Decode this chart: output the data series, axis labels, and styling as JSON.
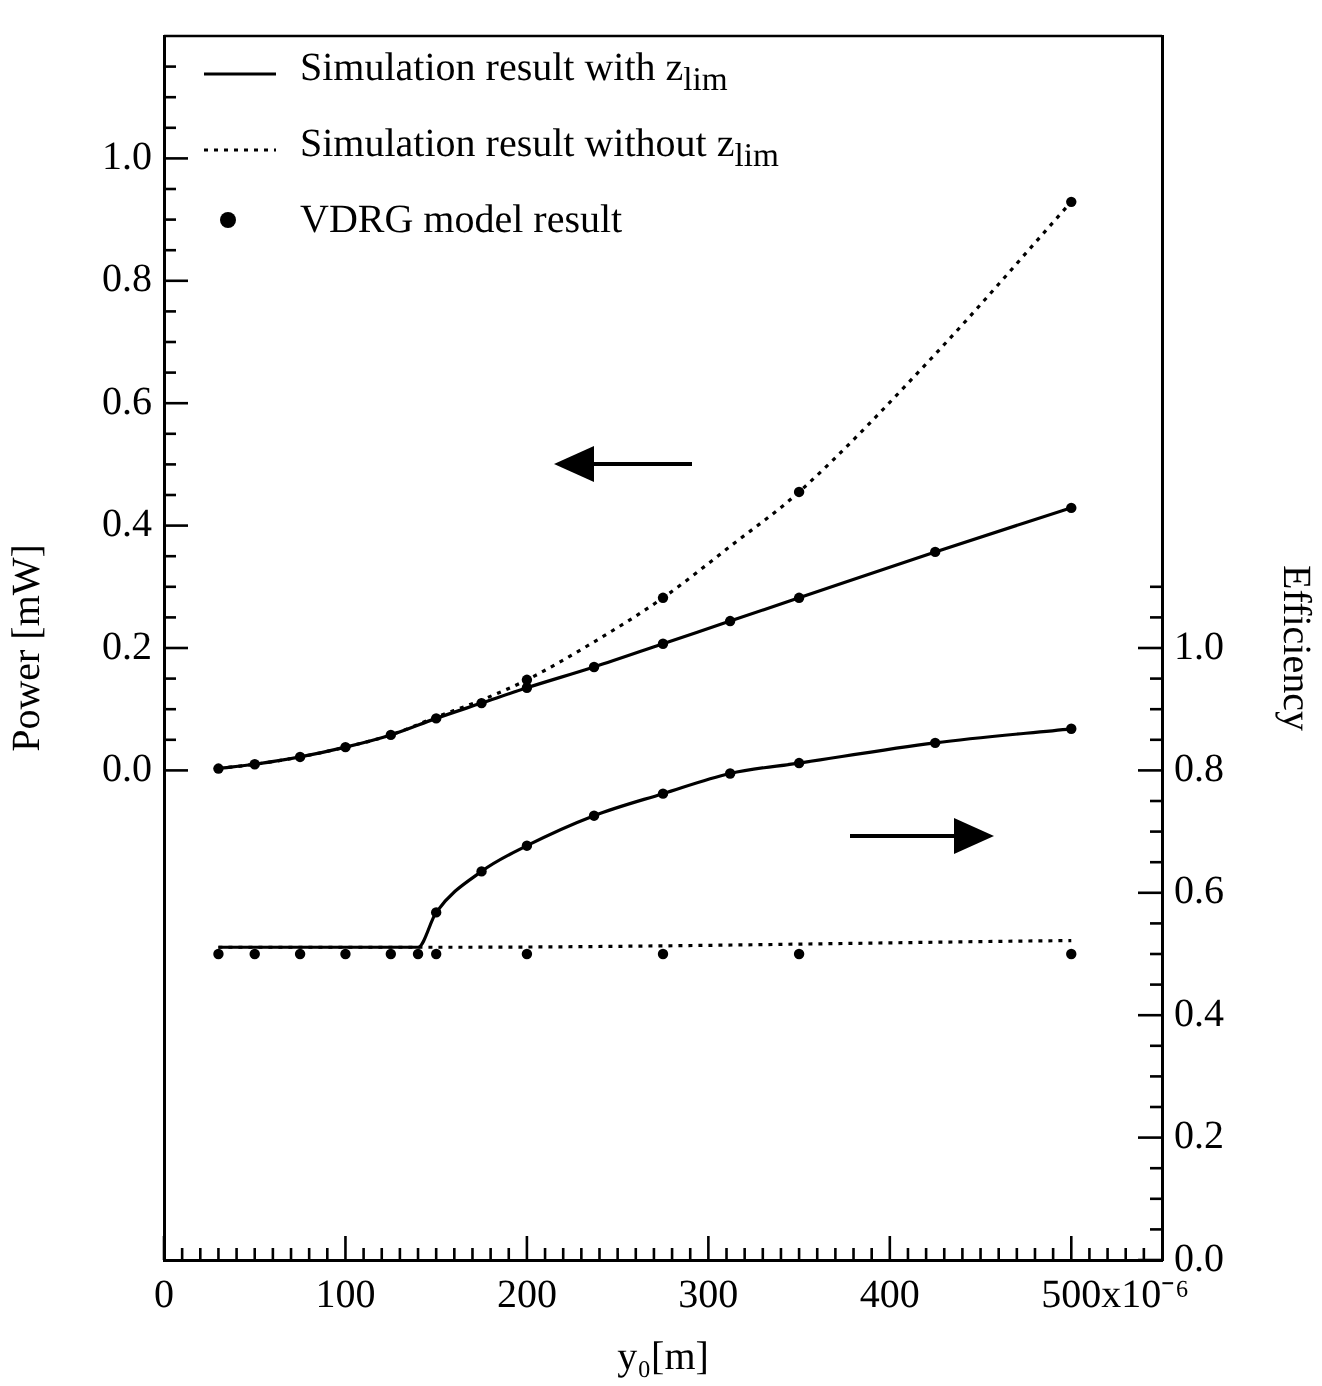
{
  "chart_data": {
    "type": "line",
    "xlabel": "y₀[m]",
    "ylabel": "Power [mW]",
    "y2label": "Efficiency",
    "xlim": [
      0,
      550
    ],
    "ylim": [
      -0.8,
      1.2
    ],
    "y2lim": [
      0,
      2.0
    ],
    "xticks": [
      {
        "value": 0,
        "label": "0"
      },
      {
        "value": 10,
        "label": null
      },
      {
        "value": 20,
        "label": null
      },
      {
        "value": 30,
        "label": null
      },
      {
        "value": 40,
        "label": null
      },
      {
        "value": 50,
        "label": null
      },
      {
        "value": 60,
        "label": null
      },
      {
        "value": 70,
        "label": null
      },
      {
        "value": 80,
        "label": null
      },
      {
        "value": 90,
        "label": null
      },
      100,
      {
        "value": 110,
        "label": null
      },
      {
        "value": 120,
        "label": null
      },
      {
        "value": 130,
        "label": null
      },
      {
        "value": 140,
        "label": null
      },
      {
        "value": 150,
        "label": null
      },
      {
        "value": 160,
        "label": null
      },
      {
        "value": 170,
        "label": null
      },
      {
        "value": 180,
        "label": null
      },
      {
        "value": 190,
        "label": null
      },
      200,
      {
        "value": 210,
        "label": null
      },
      {
        "value": 220,
        "label": null
      },
      {
        "value": 230,
        "label": null
      },
      {
        "value": 240,
        "label": null
      },
      {
        "value": 250,
        "label": null
      },
      {
        "value": 260,
        "label": null
      },
      {
        "value": 270,
        "label": null
      },
      {
        "value": 280,
        "label": null
      },
      {
        "value": 290,
        "label": null
      },
      300,
      {
        "value": 310,
        "label": null
      },
      {
        "value": 320,
        "label": null
      },
      {
        "value": 330,
        "label": null
      },
      {
        "value": 340,
        "label": null
      },
      {
        "value": 350,
        "label": null
      },
      {
        "value": 360,
        "label": null
      },
      {
        "value": 370,
        "label": null
      },
      {
        "value": 380,
        "label": null
      },
      {
        "value": 390,
        "label": null
      },
      400,
      {
        "value": 410,
        "label": null
      },
      {
        "value": 420,
        "label": null
      },
      {
        "value": 430,
        "label": null
      },
      {
        "value": 440,
        "label": null
      },
      {
        "value": 450,
        "label": null
      },
      {
        "value": 460,
        "label": null
      },
      {
        "value": 470,
        "label": null
      },
      {
        "value": 480,
        "label": null
      },
      {
        "value": 490,
        "label": null
      },
      500,
      {
        "value": 510,
        "label": null
      },
      {
        "value": 520,
        "label": null
      },
      {
        "value": 530,
        "label": null
      },
      {
        "value": 540,
        "label": null
      }
    ],
    "yticks": [
      {
        "value": 0,
        "label": "0.0"
      },
      {
        "value": 0.05,
        "label": null
      },
      {
        "value": 0.1,
        "label": null
      },
      {
        "value": 0.15,
        "label": null
      },
      0.2,
      {
        "value": 0.25,
        "label": null
      },
      {
        "value": 0.3,
        "label": null
      },
      {
        "value": 0.35,
        "label": null
      },
      0.4,
      {
        "value": 0.45,
        "label": null
      },
      {
        "value": 0.5,
        "label": null
      },
      {
        "value": 0.55,
        "label": null
      },
      0.6,
      {
        "value": 0.65,
        "label": null
      },
      {
        "value": 0.7,
        "label": null
      },
      {
        "value": 0.75,
        "label": null
      },
      0.8,
      {
        "value": 0.85,
        "label": null
      },
      {
        "value": 0.9,
        "label": null
      },
      {
        "value": 0.95,
        "label": null
      },
      {
        "value": 1.0,
        "label": "1.0"
      },
      {
        "value": 1.05,
        "label": null
      },
      {
        "value": 1.1,
        "label": null
      },
      {
        "value": 1.15,
        "label": null
      }
    ],
    "y2ticks": [
      {
        "value": 0,
        "label": "0.0"
      },
      {
        "value": 0.05,
        "label": null
      },
      {
        "value": 0.1,
        "label": null
      },
      {
        "value": 0.15,
        "label": null
      },
      0.2,
      {
        "value": 0.25,
        "label": null
      },
      {
        "value": 0.3,
        "label": null
      },
      {
        "value": 0.35,
        "label": null
      },
      0.4,
      {
        "value": 0.45,
        "label": null
      },
      {
        "value": 0.5,
        "label": null
      },
      {
        "value": 0.55,
        "label": null
      },
      0.6,
      {
        "value": 0.65,
        "label": null
      },
      {
        "value": 0.7,
        "label": null
      },
      {
        "value": 0.75,
        "label": null
      },
      0.8,
      {
        "value": 0.85,
        "label": null
      },
      {
        "value": 0.9,
        "label": null
      },
      {
        "value": 0.95,
        "label": null
      },
      {
        "value": 1.0,
        "label": "1.0"
      },
      {
        "value": 1.05,
        "label": null
      },
      {
        "value": 1.1,
        "label": null
      }
    ],
    "grid": false,
    "legend": "top left",
    "annotations": [
      "x10⁻⁶"
    ],
    "series": [
      {
        "name": "Simulation result with z$_{lim}$",
        "type": "line",
        "axis": "y",
        "color": "#000000",
        "line_style": "solid",
        "marker": "none",
        "x": [
          30,
          50,
          75,
          100,
          125,
          150,
          175,
          200,
          237,
          275,
          312,
          350,
          425,
          500
        ],
        "values": [
          0.003,
          0.01,
          0.022,
          0.038,
          0.058,
          0.085,
          0.11,
          0.135,
          0.169,
          0.207,
          0.244,
          0.282,
          0.357,
          0.429
        ]
      },
      {
        "name": "Simulation result without z$_{lim}$",
        "type": "line",
        "axis": "y",
        "color": "#000000",
        "line_style": "dotted",
        "marker": "none",
        "x": [
          30,
          50,
          75,
          100,
          125,
          150,
          175,
          200,
          237,
          275,
          312,
          350,
          425,
          500
        ],
        "values": [
          0.003,
          0.01,
          0.022,
          0.038,
          0.058,
          0.087,
          0.115,
          0.148,
          0.21,
          0.282,
          0.366,
          0.455,
          0.68,
          0.929
        ]
      },
      {
        "name": "VDRG model result",
        "type": "scatter",
        "axis": "y",
        "color": "#000000",
        "marker": "circle",
        "x": [
          30,
          50,
          75,
          100,
          125,
          150,
          175,
          200,
          200,
          237,
          275,
          275,
          312,
          350,
          350,
          425,
          500,
          500
        ],
        "values": [
          0.003,
          0.01,
          0.022,
          0.038,
          0.058,
          0.085,
          0.11,
          0.135,
          0.148,
          0.169,
          0.207,
          0.282,
          0.244,
          0.282,
          0.455,
          0.357,
          0.429,
          0.929
        ]
      },
      {
        "type": "line",
        "axis": "y2",
        "color": "#000000",
        "line_style": "solid",
        "marker": "none",
        "x": [
          30,
          140,
          150,
          175,
          200,
          237,
          275,
          312,
          350,
          425,
          500
        ],
        "values": [
          0.511,
          0.511,
          0.568,
          0.635,
          0.677,
          0.726,
          0.762,
          0.795,
          0.812,
          0.845,
          0.868
        ]
      },
      {
        "type": "line",
        "axis": "y2",
        "color": "#000000",
        "line_style": "dotted",
        "marker": "none",
        "x": [
          30,
          150,
          500
        ],
        "values": [
          0.511,
          0.511,
          0.522
        ]
      },
      {
        "type": "scatter",
        "axis": "y2",
        "color": "#000000",
        "marker": "circle",
        "x": [
          30,
          50,
          75,
          100,
          125,
          140,
          150,
          150,
          175,
          200,
          200,
          237,
          275,
          275,
          312,
          350,
          350,
          425,
          500,
          500
        ],
        "values": [
          0.5,
          0.5,
          0.5,
          0.5,
          0.5,
          0.5,
          0.5,
          0.568,
          0.635,
          0.5,
          0.677,
          0.726,
          0.5,
          0.762,
          0.795,
          0.5,
          0.812,
          0.845,
          0.5,
          0.868
        ]
      }
    ]
  }
}
